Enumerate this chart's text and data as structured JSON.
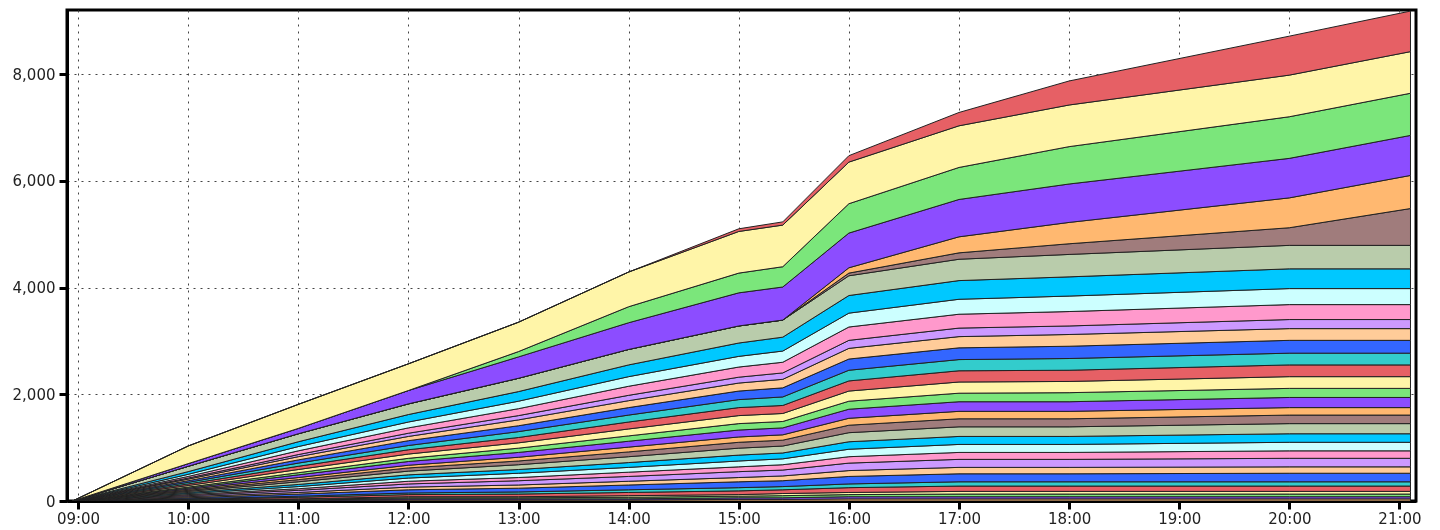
{
  "chart_data": {
    "type": "area",
    "stacked": true,
    "grid": true,
    "x": [
      8.95,
      10,
      11,
      12,
      13,
      14,
      15,
      15.4,
      16,
      17,
      18,
      20,
      21.1
    ],
    "xlim": [
      8.9,
      21.15
    ],
    "xticks": [
      {
        "value": 9,
        "label": "09:00"
      },
      {
        "value": 10,
        "label": "10:00"
      },
      {
        "value": 11,
        "label": "11:00"
      },
      {
        "value": 12,
        "label": "12:00"
      },
      {
        "value": 13,
        "label": "13:00"
      },
      {
        "value": 14,
        "label": "14:00"
      },
      {
        "value": 15,
        "label": "15:00"
      },
      {
        "value": 16,
        "label": "16:00"
      },
      {
        "value": 17,
        "label": "17:00"
      },
      {
        "value": 18,
        "label": "18:00"
      },
      {
        "value": 19,
        "label": "19:00"
      },
      {
        "value": 20,
        "label": "20:00"
      },
      {
        "value": 21,
        "label": "21:00"
      }
    ],
    "ylim": [
      0,
      9200
    ],
    "yticks": [
      0,
      {
        "value": 2000,
        "label": "2,000"
      },
      {
        "value": 4000,
        "label": "4,000"
      },
      {
        "value": 6000,
        "label": "6,000"
      },
      {
        "value": 8000,
        "label": "8,000"
      }
    ],
    "series": [
      {
        "color": "#ffb870",
        "values": [
          0,
          0,
          10,
          20,
          20,
          20,
          30,
          30,
          40,
          40,
          40,
          40,
          40
        ]
      },
      {
        "color": "#8c4dff",
        "values": [
          0,
          0,
          10,
          20,
          20,
          20,
          30,
          30,
          40,
          40,
          40,
          40,
          40
        ]
      },
      {
        "color": "#7be67b",
        "values": [
          0,
          10,
          10,
          20,
          20,
          30,
          30,
          40,
          40,
          50,
          50,
          50,
          50
        ]
      },
      {
        "color": "#fff5a8",
        "values": [
          0,
          10,
          10,
          20,
          20,
          30,
          30,
          40,
          40,
          50,
          50,
          50,
          50
        ]
      },
      {
        "color": "#e66065",
        "values": [
          0,
          10,
          30,
          40,
          50,
          60,
          70,
          70,
          90,
          100,
          100,
          100,
          100
        ]
      },
      {
        "color": "#33cccc",
        "values": [
          0,
          10,
          20,
          30,
          40,
          50,
          60,
          60,
          70,
          80,
          80,
          80,
          80
        ]
      },
      {
        "color": "#3366ff",
        "values": [
          0,
          20,
          40,
          60,
          70,
          90,
          110,
          110,
          140,
          150,
          150,
          160,
          160
        ]
      },
      {
        "color": "#ffcc99",
        "values": [
          0,
          20,
          30,
          50,
          60,
          70,
          80,
          90,
          110,
          120,
          120,
          120,
          120
        ]
      },
      {
        "color": "#cc99ff",
        "values": [
          0,
          20,
          40,
          60,
          80,
          90,
          110,
          110,
          140,
          150,
          150,
          160,
          160
        ]
      },
      {
        "color": "#ff99cc",
        "values": [
          0,
          20,
          30,
          50,
          60,
          80,
          90,
          100,
          120,
          130,
          130,
          140,
          140
        ]
      },
      {
        "color": "#ccffff",
        "values": [
          0,
          20,
          40,
          60,
          80,
          90,
          110,
          110,
          140,
          150,
          150,
          160,
          160
        ]
      },
      {
        "color": "#00c8ff",
        "values": [
          0,
          20,
          40,
          60,
          70,
          90,
          110,
          110,
          140,
          150,
          150,
          160,
          160
        ]
      },
      {
        "color": "#b9ccab",
        "values": [
          0,
          20,
          50,
          70,
          90,
          110,
          130,
          130,
          170,
          180,
          180,
          190,
          190
        ]
      },
      {
        "color": "#a07c7c",
        "values": [
          0,
          20,
          40,
          60,
          70,
          90,
          110,
          110,
          140,
          150,
          150,
          160,
          160
        ]
      },
      {
        "color": "#ffb870",
        "values": [
          0,
          20,
          40,
          50,
          70,
          90,
          100,
          100,
          130,
          140,
          140,
          140,
          140
        ]
      },
      {
        "color": "#8c4dff",
        "values": [
          0,
          20,
          50,
          70,
          90,
          110,
          130,
          130,
          170,
          180,
          180,
          190,
          190
        ]
      },
      {
        "color": "#7be67b",
        "values": [
          0,
          20,
          40,
          60,
          80,
          100,
          120,
          120,
          150,
          160,
          170,
          170,
          170
        ]
      },
      {
        "color": "#fff5a8",
        "values": [
          0,
          30,
          60,
          80,
          100,
          130,
          150,
          150,
          190,
          210,
          210,
          220,
          220
        ]
      },
      {
        "color": "#e66065",
        "values": [
          0,
          30,
          60,
          80,
          100,
          130,
          150,
          150,
          190,
          210,
          210,
          220,
          220
        ]
      },
      {
        "color": "#33cccc",
        "values": [
          0,
          30,
          60,
          80,
          110,
          130,
          150,
          160,
          200,
          210,
          220,
          220,
          220
        ]
      },
      {
        "color": "#3366ff",
        "values": [
          0,
          30,
          60,
          90,
          110,
          140,
          160,
          170,
          210,
          220,
          230,
          240,
          240
        ]
      },
      {
        "color": "#ffcc99",
        "values": [
          0,
          30,
          60,
          80,
          110,
          130,
          150,
          160,
          200,
          210,
          220,
          220,
          220
        ]
      },
      {
        "color": "#cc99ff",
        "values": [
          0,
          20,
          40,
          60,
          80,
          100,
          110,
          120,
          150,
          160,
          160,
          170,
          170
        ]
      },
      {
        "color": "#ff99cc",
        "values": [
          0,
          30,
          70,
          100,
          130,
          170,
          190,
          200,
          250,
          260,
          270,
          280,
          280
        ]
      },
      {
        "color": "#ccffff",
        "values": [
          0,
          40,
          80,
          110,
          140,
          180,
          200,
          210,
          260,
          280,
          290,
          300,
          300
        ]
      },
      {
        "color": "#00c8ff",
        "values": [
          0,
          50,
          90,
          140,
          180,
          220,
          250,
          260,
          330,
          350,
          360,
          370,
          370
        ]
      },
      {
        "color": "#b9ccab",
        "values": [
          0,
          100,
          150,
          200,
          250,
          290,
          320,
          320,
          370,
          400,
          420,
          440,
          440
        ]
      },
      {
        "color": "#a07c7c",
        "values": [
          0,
          0,
          0,
          0,
          0,
          0,
          0,
          0,
          50,
          120,
          200,
          330,
          690
        ]
      },
      {
        "color": "#ffb870",
        "values": [
          0,
          0,
          0,
          0,
          0,
          0,
          0,
          0,
          100,
          300,
          400,
          560,
          620
        ]
      },
      {
        "color": "#8c4dff",
        "values": [
          0,
          50,
          100,
          250,
          400,
          500,
          620,
          620,
          650,
          700,
          720,
          740,
          750
        ]
      },
      {
        "color": "#7be67b",
        "values": [
          0,
          0,
          0,
          0,
          100,
          300,
          370,
          380,
          550,
          600,
          700,
          780,
          790
        ]
      },
      {
        "color": "#fff5a8",
        "values": [
          0,
          330,
          450,
          500,
          550,
          650,
          780,
          780,
          780,
          780,
          780,
          780,
          780
        ]
      },
      {
        "color": "#e66065",
        "values": [
          0,
          0,
          0,
          0,
          0,
          0,
          50,
          60,
          120,
          250,
          450,
          730,
          760
        ]
      }
    ]
  }
}
